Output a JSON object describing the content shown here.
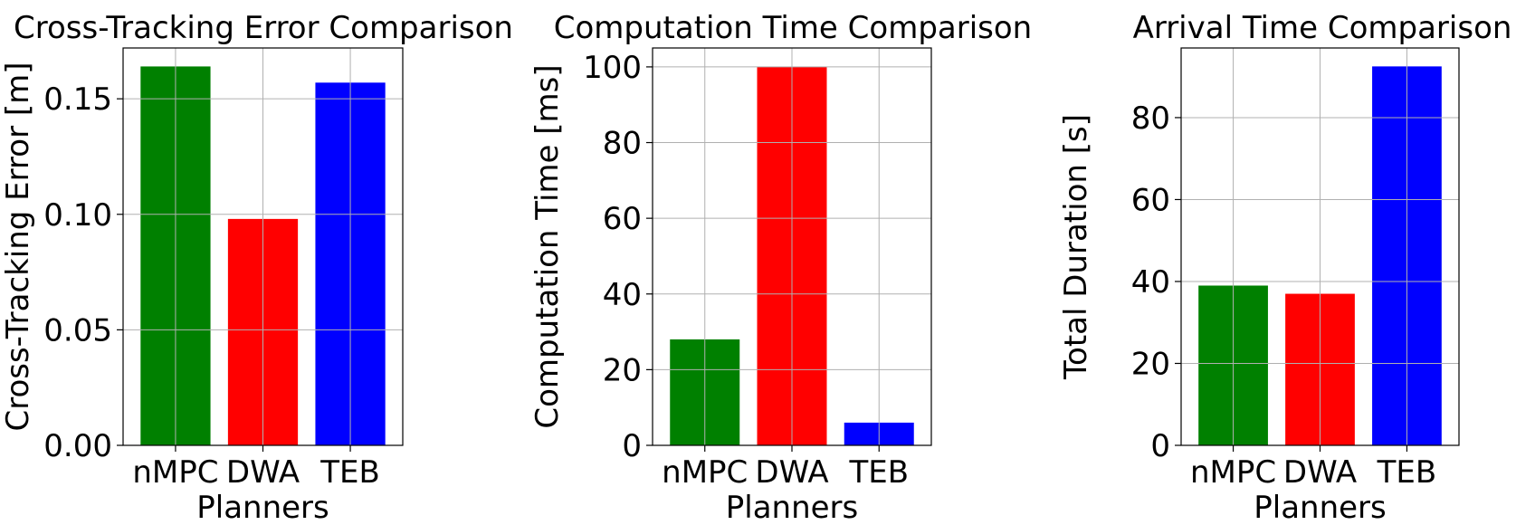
{
  "chart_data": [
    {
      "type": "bar",
      "title": "Cross-Tracking Error Comparison",
      "xlabel": "Planners",
      "ylabel": "Cross-Tracking Error [m]",
      "categories": [
        "nMPC",
        "DWA",
        "TEB"
      ],
      "values": [
        0.164,
        0.098,
        0.157
      ],
      "colors": [
        "#008000",
        "#ff0000",
        "#0000ff"
      ],
      "ylim": [
        0,
        0.172
      ],
      "yticks": [
        0.0,
        0.05,
        0.1,
        0.15
      ],
      "ytick_labels": [
        "0.00",
        "0.05",
        "0.10",
        "0.15"
      ],
      "grid": true
    },
    {
      "type": "bar",
      "title": "Computation Time Comparison",
      "xlabel": "Planners",
      "ylabel": "Computation Time [ms]",
      "categories": [
        "nMPC",
        "DWA",
        "TEB"
      ],
      "values": [
        28,
        100,
        6
      ],
      "colors": [
        "#008000",
        "#ff0000",
        "#0000ff"
      ],
      "ylim": [
        0,
        105
      ],
      "yticks": [
        0,
        20,
        40,
        60,
        80,
        100
      ],
      "ytick_labels": [
        "0",
        "20",
        "40",
        "60",
        "80",
        "100"
      ],
      "grid": true
    },
    {
      "type": "bar",
      "title": "Arrival Time Comparison",
      "xlabel": "Planners",
      "ylabel": "Total Duration [s]",
      "categories": [
        "nMPC",
        "DWA",
        "TEB"
      ],
      "values": [
        39,
        37,
        92.5
      ],
      "colors": [
        "#008000",
        "#ff0000",
        "#0000ff"
      ],
      "ylim": [
        0,
        97
      ],
      "yticks": [
        0,
        20,
        40,
        60,
        80
      ],
      "ytick_labels": [
        "0",
        "20",
        "40",
        "60",
        "80"
      ],
      "grid": true
    }
  ]
}
